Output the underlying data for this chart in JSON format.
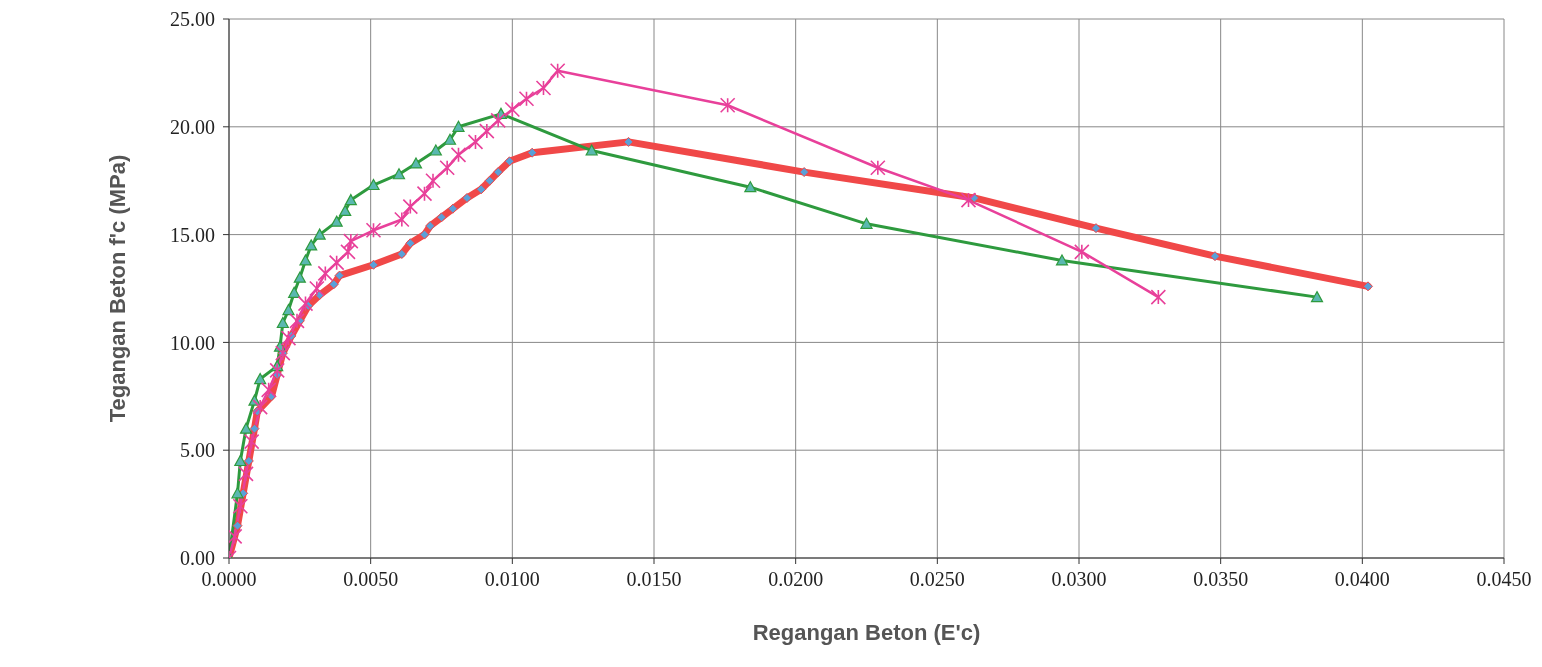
{
  "chart_data": {
    "type": "line",
    "xlabel": "Regangan Beton (E'c)",
    "ylabel": "Tegangan Beton f'c (MPa)",
    "xlim": [
      0,
      0.045
    ],
    "ylim": [
      0,
      25
    ],
    "xticks": [
      {
        "value": 0,
        "label": "0.0000"
      },
      {
        "value": 0.005,
        "label": "0.0050"
      },
      {
        "value": 0.01,
        "label": "0.0100"
      },
      {
        "value": 0.015,
        "label": "0.0150"
      },
      {
        "value": 0.02,
        "label": "0.0200"
      },
      {
        "value": 0.025,
        "label": "0.0250"
      },
      {
        "value": 0.03,
        "label": "0.0300"
      },
      {
        "value": 0.035,
        "label": "0.0350"
      },
      {
        "value": 0.04,
        "label": "0.0400"
      },
      {
        "value": 0.045,
        "label": "0.0450"
      }
    ],
    "yticks": [
      {
        "value": 0,
        "label": "0.00"
      },
      {
        "value": 5,
        "label": "5.00"
      },
      {
        "value": 10,
        "label": "10.00"
      },
      {
        "value": 15,
        "label": "15.00"
      },
      {
        "value": 20,
        "label": "20.00"
      },
      {
        "value": 25,
        "label": "25.00"
      }
    ],
    "grid": true,
    "legend": false,
    "series": [
      {
        "color": "#f04848",
        "marker": "diamond",
        "x": [
          0,
          0.0003,
          0.0005,
          0.0007,
          0.0009,
          0.001,
          0.0015,
          0.0017,
          0.0019,
          0.0022,
          0.0025,
          0.0028,
          0.0032,
          0.0037,
          0.0039,
          0.0051,
          0.0061,
          0.0064,
          0.0069,
          0.0071,
          0.0075,
          0.0079,
          0.0084,
          0.0089,
          0.0092,
          0.0095,
          0.0099,
          0.0107,
          0.0141,
          0.0203,
          0.0263,
          0.0306,
          0.0348,
          0.0402
        ],
        "values": [
          0,
          1.5,
          3,
          4.5,
          6,
          6.8,
          7.5,
          8.5,
          9.5,
          10.3,
          11,
          11.7,
          12.2,
          12.7,
          13.1,
          13.6,
          14.1,
          14.6,
          15,
          15.4,
          15.8,
          16.2,
          16.7,
          17.1,
          17.5,
          17.9,
          18.4,
          18.8,
          19.3,
          17.9,
          16.7,
          15.3,
          14,
          12.6
        ]
      },
      {
        "color": "#2e9a3e",
        "marker": "triangle",
        "x": [
          0,
          0.0003,
          0.0004,
          0.0006,
          0.0009,
          0.0011,
          0.0017,
          0.0018,
          0.0019,
          0.0021,
          0.0023,
          0.0025,
          0.0027,
          0.0029,
          0.0032,
          0.0038,
          0.0041,
          0.0043,
          0.0051,
          0.006,
          0.0066,
          0.0073,
          0.0078,
          0.0081,
          0.0096,
          0.0128,
          0.0184,
          0.0225,
          0.0294,
          0.0384
        ],
        "values": [
          0,
          3,
          4.5,
          6,
          7.3,
          8.3,
          8.9,
          9.8,
          10.9,
          11.5,
          12.3,
          13,
          13.8,
          14.5,
          15,
          15.6,
          16.1,
          16.6,
          17.3,
          17.8,
          18.3,
          18.9,
          19.4,
          20,
          20.6,
          18.9,
          17.2,
          15.5,
          13.8,
          12.1
        ]
      },
      {
        "color": "#e8409a",
        "marker": "cross",
        "x": [
          0,
          0.0002,
          0.0004,
          0.0006,
          0.0008,
          0.0011,
          0.0014,
          0.0017,
          0.0019,
          0.0021,
          0.0024,
          0.0027,
          0.0031,
          0.0034,
          0.0038,
          0.0042,
          0.0043,
          0.0051,
          0.0061,
          0.0064,
          0.0069,
          0.0072,
          0.0077,
          0.0081,
          0.0087,
          0.0091,
          0.0095,
          0.01,
          0.0105,
          0.0111,
          0.0116,
          0.0176,
          0.0229,
          0.0261,
          0.0301,
          0.0328
        ],
        "values": [
          0,
          1,
          2.4,
          3.9,
          5.4,
          7,
          7.8,
          8.7,
          9.5,
          10.2,
          11,
          11.8,
          12.5,
          13.2,
          13.7,
          14.2,
          14.7,
          15.2,
          15.7,
          16.3,
          16.9,
          17.5,
          18.1,
          18.7,
          19.3,
          19.8,
          20.3,
          20.8,
          21.3,
          21.8,
          22.6,
          21,
          18.1,
          16.6,
          14.2,
          12.1
        ]
      }
    ]
  }
}
